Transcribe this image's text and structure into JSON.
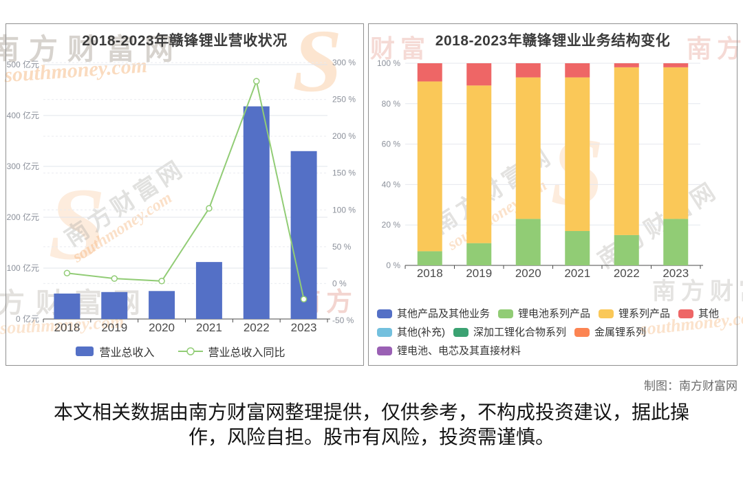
{
  "page": {
    "credit": "制图：南方财富网",
    "disclaimer_line1": "本文相关数据由南方财富网整理提供，仅供参考，不构成投资建议，据此操",
    "disclaimer_line2": "作，风险自担。股市有风险，投资需谨慎。"
  },
  "watermarks": {
    "cjk_text": "南方财富网",
    "script_text": "southmoney.com",
    "swirl_glyph": "S"
  },
  "chart_data": [
    {
      "type": "bar",
      "title": "2018-2023年赣锋锂业营收状况",
      "categories": [
        "2018",
        "2019",
        "2020",
        "2021",
        "2022",
        "2023"
      ],
      "series": [
        {
          "name": "营业总收入",
          "kind": "bar",
          "axis": "left",
          "unit": "亿元",
          "color": "#5470c6",
          "values": [
            50,
            53,
            55,
            112,
            418,
            330
          ]
        },
        {
          "name": "营业总收入同比",
          "kind": "line",
          "axis": "right",
          "unit": "%",
          "color": "#91cc75",
          "values": [
            14.2,
            6.8,
            3.4,
            102.1,
            274.7,
            -21.2
          ]
        }
      ],
      "left_axis": {
        "min": 0,
        "max": 500,
        "tick_step": 100,
        "suffix": " 亿元"
      },
      "right_axis": {
        "min": -50,
        "max": 300,
        "tick_step": 50,
        "suffix": " %"
      },
      "grid": true,
      "legend_position": "bottom"
    },
    {
      "type": "bar",
      "subtype": "stacked-percent",
      "title": "2018-2023年赣锋锂业业务结构变化",
      "categories": [
        "2018",
        "2019",
        "2020",
        "2021",
        "2022",
        "2023"
      ],
      "series": [
        {
          "name": "其他产品及其他业务",
          "color": "#5470c6",
          "values": [
            0,
            0,
            0,
            0,
            0,
            0
          ]
        },
        {
          "name": "锂电池系列产品",
          "color": "#91cc75",
          "values": [
            7,
            11,
            23,
            17,
            15,
            23
          ]
        },
        {
          "name": "锂系列产品",
          "color": "#fac858",
          "values": [
            84,
            78,
            70,
            76,
            83,
            75
          ]
        },
        {
          "name": "其他",
          "color": "#ee6666",
          "values": [
            9,
            11,
            7,
            7,
            2,
            2
          ]
        },
        {
          "name": "其他(补充)",
          "color": "#73c0de",
          "values": [
            0,
            0,
            0,
            0,
            0,
            0
          ]
        },
        {
          "name": "深加工锂化合物系列",
          "color": "#3ba272",
          "values": [
            0,
            0,
            0,
            0,
            0,
            0
          ]
        },
        {
          "name": "金属锂系列",
          "color": "#fc8452",
          "values": [
            0,
            0,
            0,
            0,
            0,
            0
          ]
        },
        {
          "name": "锂电池、电芯及其直接材料",
          "color": "#9a60b4",
          "values": [
            0,
            0,
            0,
            0,
            0,
            0
          ]
        }
      ],
      "y_axis": {
        "min": 0,
        "max": 100,
        "tick_step": 20,
        "suffix": " %"
      },
      "grid": true,
      "legend_position": "bottom"
    }
  ]
}
